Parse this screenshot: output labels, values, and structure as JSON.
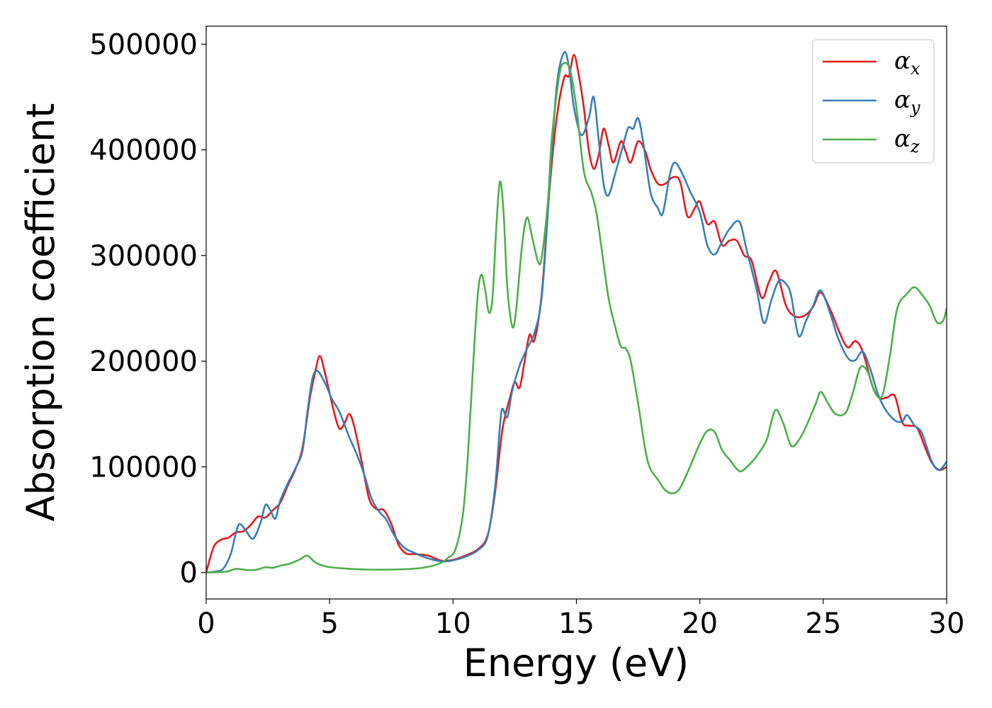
{
  "chart_data": {
    "type": "line",
    "title": "",
    "xlabel": "Energy (eV)",
    "ylabel": "Absorption coefficient",
    "xlim": [
      0,
      30
    ],
    "ylim": [
      -25000,
      517000
    ],
    "xticks": [
      0,
      5,
      10,
      15,
      20,
      25,
      30
    ],
    "yticks": [
      0,
      100000,
      200000,
      300000,
      400000,
      500000
    ],
    "grid": false,
    "legend_position": "top-right",
    "series": [
      {
        "name": "α",
        "subscript": "x",
        "color": "#e41a1c",
        "points": [
          [
            0,
            0
          ],
          [
            0.3,
            24000
          ],
          [
            0.6,
            31000
          ],
          [
            0.9,
            33000
          ],
          [
            1.2,
            38000
          ],
          [
            1.5,
            39000
          ],
          [
            1.8,
            45000
          ],
          [
            2.1,
            53000
          ],
          [
            2.4,
            52000
          ],
          [
            2.7,
            59000
          ],
          [
            3.0,
            66000
          ],
          [
            3.3,
            82000
          ],
          [
            3.6,
            97000
          ],
          [
            3.9,
            118000
          ],
          [
            4.2,
            165000
          ],
          [
            4.4,
            188000
          ],
          [
            4.6,
            205000
          ],
          [
            4.8,
            190000
          ],
          [
            5.0,
            170000
          ],
          [
            5.2,
            150000
          ],
          [
            5.4,
            136000
          ],
          [
            5.6,
            141000
          ],
          [
            5.8,
            150000
          ],
          [
            6.0,
            138000
          ],
          [
            6.3,
            105000
          ],
          [
            6.6,
            70000
          ],
          [
            6.9,
            60000
          ],
          [
            7.2,
            59000
          ],
          [
            7.5,
            46000
          ],
          [
            7.8,
            26000
          ],
          [
            8.1,
            18000
          ],
          [
            8.4,
            17500
          ],
          [
            8.7,
            17000
          ],
          [
            9.0,
            16000
          ],
          [
            9.3,
            13000
          ],
          [
            9.6,
            11000
          ],
          [
            10.0,
            12000
          ],
          [
            10.5,
            16000
          ],
          [
            11.0,
            22000
          ],
          [
            11.4,
            35000
          ],
          [
            11.7,
            75000
          ],
          [
            12.0,
            135000
          ],
          [
            12.3,
            165000
          ],
          [
            12.5,
            180000
          ],
          [
            12.7,
            175000
          ],
          [
            12.9,
            200000
          ],
          [
            13.1,
            225000
          ],
          [
            13.3,
            220000
          ],
          [
            13.6,
            265000
          ],
          [
            13.9,
            360000
          ],
          [
            14.2,
            430000
          ],
          [
            14.5,
            468000
          ],
          [
            14.7,
            470000
          ],
          [
            14.9,
            490000
          ],
          [
            15.1,
            470000
          ],
          [
            15.3,
            440000
          ],
          [
            15.5,
            400000
          ],
          [
            15.7,
            382000
          ],
          [
            15.9,
            395000
          ],
          [
            16.1,
            420000
          ],
          [
            16.3,
            405000
          ],
          [
            16.5,
            388000
          ],
          [
            16.8,
            408000
          ],
          [
            17.0,
            398000
          ],
          [
            17.2,
            388000
          ],
          [
            17.5,
            408000
          ],
          [
            17.8,
            398000
          ],
          [
            18.0,
            382000
          ],
          [
            18.3,
            368000
          ],
          [
            18.6,
            368000
          ],
          [
            18.9,
            374000
          ],
          [
            19.2,
            370000
          ],
          [
            19.5,
            337000
          ],
          [
            19.8,
            345000
          ],
          [
            20.0,
            351000
          ],
          [
            20.3,
            330000
          ],
          [
            20.6,
            332000
          ],
          [
            20.9,
            310000
          ],
          [
            21.2,
            314000
          ],
          [
            21.5,
            314000
          ],
          [
            21.8,
            300000
          ],
          [
            22.1,
            295000
          ],
          [
            22.5,
            260000
          ],
          [
            22.8,
            275000
          ],
          [
            23.1,
            285000
          ],
          [
            23.5,
            252000
          ],
          [
            23.9,
            242000
          ],
          [
            24.3,
            244000
          ],
          [
            24.6,
            252000
          ],
          [
            24.9,
            265000
          ],
          [
            25.3,
            248000
          ],
          [
            25.7,
            225000
          ],
          [
            26.0,
            213000
          ],
          [
            26.3,
            219000
          ],
          [
            26.6,
            209000
          ],
          [
            27.0,
            176000
          ],
          [
            27.3,
            165000
          ],
          [
            27.6,
            166000
          ],
          [
            27.9,
            167000
          ],
          [
            28.2,
            142000
          ],
          [
            28.5,
            139000
          ],
          [
            28.8,
            137000
          ],
          [
            29.1,
            120000
          ],
          [
            29.4,
            104000
          ],
          [
            29.7,
            97000
          ],
          [
            30.0,
            100000
          ]
        ]
      },
      {
        "name": "α",
        "subscript": "y",
        "color": "#377eb8",
        "points": [
          [
            0,
            0
          ],
          [
            0.4,
            1000
          ],
          [
            0.7,
            4000
          ],
          [
            1.0,
            18000
          ],
          [
            1.2,
            37000
          ],
          [
            1.35,
            46000
          ],
          [
            1.6,
            40000
          ],
          [
            1.9,
            32000
          ],
          [
            2.2,
            47000
          ],
          [
            2.4,
            64000
          ],
          [
            2.6,
            59000
          ],
          [
            2.8,
            51000
          ],
          [
            3.0,
            68000
          ],
          [
            3.3,
            84000
          ],
          [
            3.6,
            98000
          ],
          [
            3.9,
            115000
          ],
          [
            4.1,
            152000
          ],
          [
            4.3,
            183000
          ],
          [
            4.5,
            191000
          ],
          [
            4.8,
            180000
          ],
          [
            5.1,
            164000
          ],
          [
            5.4,
            152000
          ],
          [
            5.8,
            128000
          ],
          [
            6.1,
            112000
          ],
          [
            6.4,
            93000
          ],
          [
            6.7,
            70000
          ],
          [
            7.0,
            58000
          ],
          [
            7.3,
            50000
          ],
          [
            7.6,
            36000
          ],
          [
            8.0,
            24000
          ],
          [
            8.4,
            19000
          ],
          [
            8.8,
            15000
          ],
          [
            9.2,
            12000
          ],
          [
            9.6,
            10500
          ],
          [
            10.0,
            11500
          ],
          [
            10.5,
            15000
          ],
          [
            11.0,
            21000
          ],
          [
            11.4,
            34000
          ],
          [
            11.7,
            80000
          ],
          [
            11.9,
            138000
          ],
          [
            12.0,
            155000
          ],
          [
            12.2,
            147000
          ],
          [
            12.4,
            172000
          ],
          [
            12.7,
            196000
          ],
          [
            13.0,
            212000
          ],
          [
            13.3,
            227000
          ],
          [
            13.6,
            262000
          ],
          [
            13.9,
            360000
          ],
          [
            14.2,
            460000
          ],
          [
            14.5,
            492000
          ],
          [
            14.7,
            478000
          ],
          [
            14.9,
            440000
          ],
          [
            15.2,
            414000
          ],
          [
            15.5,
            430000
          ],
          [
            15.7,
            450000
          ],
          [
            15.9,
            410000
          ],
          [
            16.1,
            368000
          ],
          [
            16.3,
            357000
          ],
          [
            16.6,
            380000
          ],
          [
            16.9,
            405000
          ],
          [
            17.1,
            421000
          ],
          [
            17.3,
            420000
          ],
          [
            17.5,
            430000
          ],
          [
            17.7,
            408000
          ],
          [
            18.0,
            360000
          ],
          [
            18.3,
            345000
          ],
          [
            18.5,
            340000
          ],
          [
            18.8,
            378000
          ],
          [
            19.0,
            388000
          ],
          [
            19.3,
            377000
          ],
          [
            19.6,
            361000
          ],
          [
            20.0,
            341000
          ],
          [
            20.3,
            310000
          ],
          [
            20.6,
            301000
          ],
          [
            20.9,
            313000
          ],
          [
            21.2,
            325000
          ],
          [
            21.6,
            332000
          ],
          [
            21.9,
            305000
          ],
          [
            22.3,
            268000
          ],
          [
            22.6,
            236000
          ],
          [
            22.9,
            258000
          ],
          [
            23.2,
            276000
          ],
          [
            23.5,
            273000
          ],
          [
            23.7,
            262000
          ],
          [
            24.0,
            224000
          ],
          [
            24.3,
            238000
          ],
          [
            24.6,
            253000
          ],
          [
            24.9,
            267000
          ],
          [
            25.3,
            244000
          ],
          [
            25.6,
            222000
          ],
          [
            26.0,
            203000
          ],
          [
            26.3,
            201000
          ],
          [
            26.6,
            209000
          ],
          [
            26.9,
            193000
          ],
          [
            27.2,
            170000
          ],
          [
            27.5,
            155000
          ],
          [
            27.9,
            144000
          ],
          [
            28.2,
            143000
          ],
          [
            28.4,
            149000
          ],
          [
            28.7,
            139000
          ],
          [
            29.0,
            132000
          ],
          [
            29.4,
            105000
          ],
          [
            29.7,
            97000
          ],
          [
            30.0,
            105000
          ]
        ]
      },
      {
        "name": "α",
        "subscript": "z",
        "color": "#4daf4a",
        "points": [
          [
            0,
            0
          ],
          [
            0.8,
            800
          ],
          [
            1.2,
            3500
          ],
          [
            1.6,
            2500
          ],
          [
            2.0,
            2500
          ],
          [
            2.4,
            5000
          ],
          [
            2.7,
            4500
          ],
          [
            3.0,
            6500
          ],
          [
            3.4,
            8500
          ],
          [
            3.8,
            12500
          ],
          [
            4.1,
            16000
          ],
          [
            4.4,
            10000
          ],
          [
            4.8,
            6000
          ],
          [
            5.5,
            4000
          ],
          [
            6.5,
            2800
          ],
          [
            7.5,
            2800
          ],
          [
            8.5,
            3800
          ],
          [
            9.0,
            5500
          ],
          [
            9.5,
            9000
          ],
          [
            9.8,
            14000
          ],
          [
            10.1,
            22000
          ],
          [
            10.4,
            55000
          ],
          [
            10.6,
            110000
          ],
          [
            10.8,
            190000
          ],
          [
            11.0,
            262000
          ],
          [
            11.15,
            282000
          ],
          [
            11.3,
            268000
          ],
          [
            11.45,
            246000
          ],
          [
            11.6,
            260000
          ],
          [
            11.75,
            325000
          ],
          [
            11.9,
            370000
          ],
          [
            12.05,
            340000
          ],
          [
            12.2,
            270000
          ],
          [
            12.4,
            233000
          ],
          [
            12.55,
            247000
          ],
          [
            12.8,
            310000
          ],
          [
            13.0,
            336000
          ],
          [
            13.2,
            318000
          ],
          [
            13.45,
            294000
          ],
          [
            13.6,
            299000
          ],
          [
            13.85,
            352000
          ],
          [
            14.0,
            410000
          ],
          [
            14.3,
            470000
          ],
          [
            14.5,
            482000
          ],
          [
            14.75,
            475000
          ],
          [
            15.0,
            440000
          ],
          [
            15.3,
            380000
          ],
          [
            15.6,
            360000
          ],
          [
            15.8,
            342000
          ],
          [
            16.0,
            310000
          ],
          [
            16.3,
            260000
          ],
          [
            16.6,
            230000
          ],
          [
            16.8,
            214000
          ],
          [
            17.0,
            212000
          ],
          [
            17.2,
            200000
          ],
          [
            17.5,
            160000
          ],
          [
            17.8,
            115000
          ],
          [
            18.0,
            98000
          ],
          [
            18.3,
            88000
          ],
          [
            18.6,
            78000
          ],
          [
            18.9,
            75000
          ],
          [
            19.2,
            80000
          ],
          [
            19.6,
            100000
          ],
          [
            20.0,
            122000
          ],
          [
            20.3,
            134000
          ],
          [
            20.6,
            133000
          ],
          [
            20.9,
            116000
          ],
          [
            21.2,
            107000
          ],
          [
            21.5,
            98000
          ],
          [
            21.7,
            96000
          ],
          [
            22.0,
            102000
          ],
          [
            22.3,
            110000
          ],
          [
            22.7,
            125000
          ],
          [
            22.9,
            143000
          ],
          [
            23.1,
            154000
          ],
          [
            23.4,
            140000
          ],
          [
            23.7,
            120000
          ],
          [
            24.0,
            125000
          ],
          [
            24.3,
            138000
          ],
          [
            24.7,
            160000
          ],
          [
            24.9,
            171000
          ],
          [
            25.2,
            160000
          ],
          [
            25.5,
            150000
          ],
          [
            25.9,
            151000
          ],
          [
            26.2,
            170000
          ],
          [
            26.5,
            194000
          ],
          [
            26.8,
            190000
          ],
          [
            27.1,
            170000
          ],
          [
            27.4,
            168000
          ],
          [
            27.7,
            205000
          ],
          [
            28.0,
            250000
          ],
          [
            28.4,
            264000
          ],
          [
            28.7,
            270000
          ],
          [
            29.0,
            263000
          ],
          [
            29.3,
            253000
          ],
          [
            29.6,
            237000
          ],
          [
            29.85,
            238000
          ],
          [
            30.0,
            250000
          ]
        ]
      }
    ]
  }
}
